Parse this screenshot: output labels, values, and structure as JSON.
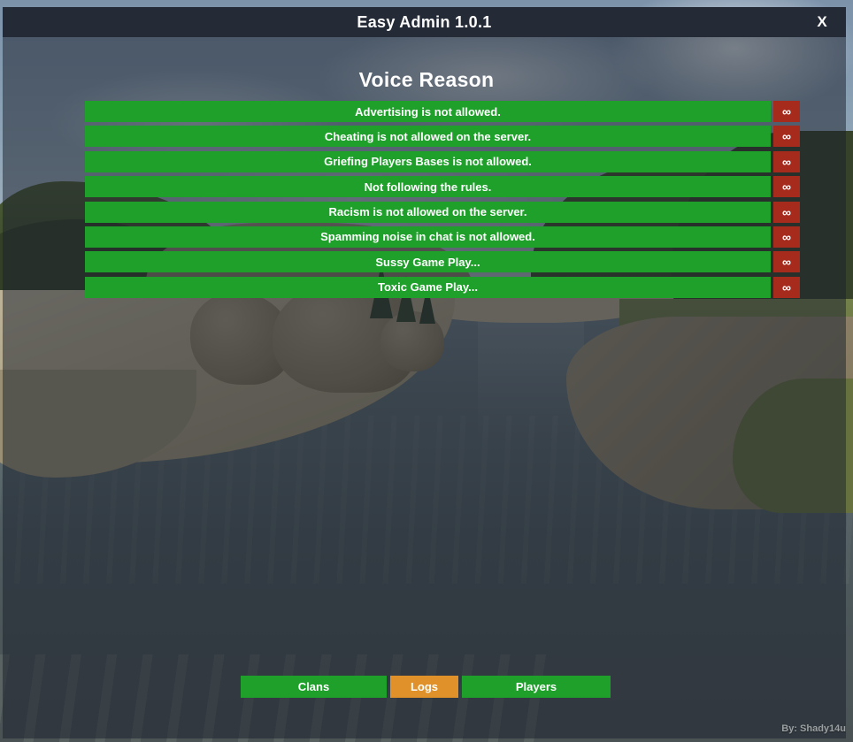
{
  "window": {
    "title": "Easy Admin 1.0.1",
    "close_label": "X"
  },
  "panel": {
    "heading": "Voice Reason"
  },
  "reasons": [
    {
      "label": "Advertising is not allowed.",
      "badge": "∞"
    },
    {
      "label": "Cheating is not allowed on the server.",
      "badge": "∞"
    },
    {
      "label": "Griefing Players Bases is not allowed.",
      "badge": "∞"
    },
    {
      "label": "Not following the rules.",
      "badge": "∞"
    },
    {
      "label": "Racism is not allowed on the server.",
      "badge": "∞"
    },
    {
      "label": "Spamming noise in chat is not allowed.",
      "badge": "∞"
    },
    {
      "label": "Sussy Game Play...",
      "badge": "∞"
    },
    {
      "label": "Toxic Game Play...",
      "badge": "∞"
    }
  ],
  "footer": {
    "buttons": [
      {
        "label": "Clans",
        "color": "green"
      },
      {
        "label": "Logs",
        "color": "orange"
      },
      {
        "label": "Players",
        "color": "green"
      }
    ]
  },
  "credit": "By: Shady14u",
  "colors": {
    "button_green": "#1fa02b",
    "button_red": "#a72b1d",
    "button_orange": "#e0912a",
    "titlebar": "#242a36"
  }
}
